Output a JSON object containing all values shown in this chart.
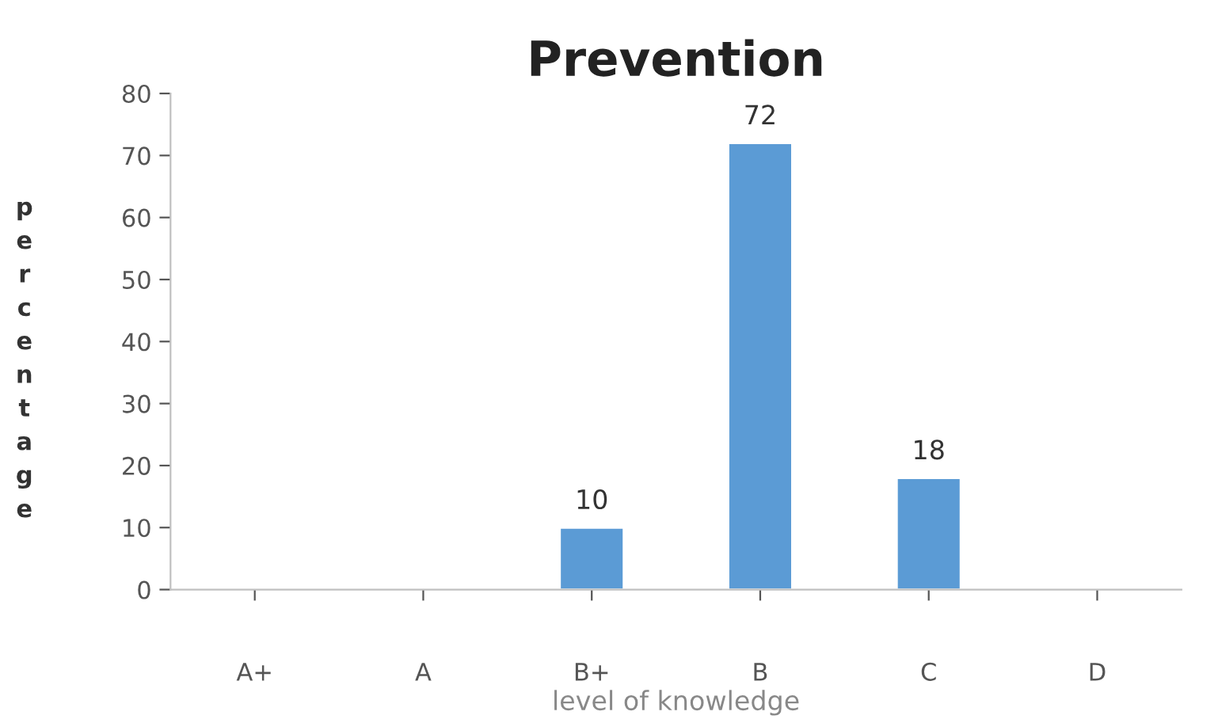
{
  "chart_data": {
    "type": "bar",
    "title": "Prevention",
    "xlabel": "level of knowledge",
    "ylabel": "percentage",
    "categories": [
      "A+",
      "A",
      "B+",
      "B",
      "C",
      "D"
    ],
    "values": [
      null,
      null,
      10,
      72,
      18,
      null
    ],
    "value_labels": [
      null,
      null,
      "10",
      "72",
      "18",
      null
    ],
    "color": "#5b9bd5",
    "ylim": [
      0,
      80
    ],
    "yticks": [
      0,
      10,
      20,
      30,
      40,
      50,
      60,
      70,
      80
    ],
    "grid": false,
    "legend": false
  }
}
